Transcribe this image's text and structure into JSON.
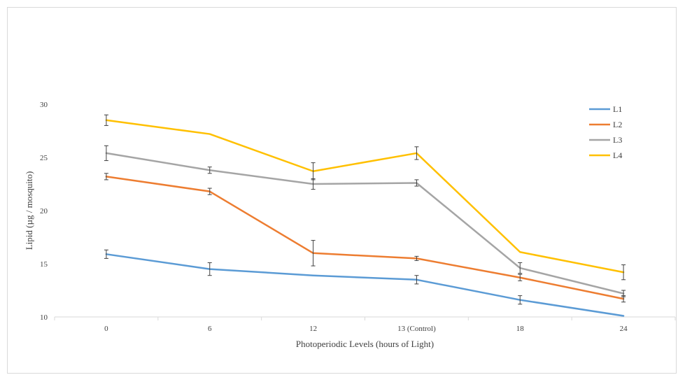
{
  "chart_data": {
    "type": "line",
    "title": "",
    "xlabel": "Photoperiodic Levels (hours of Light)",
    "ylabel": "Lipid (µg / mosquito)",
    "categories": [
      "0",
      "6",
      "12",
      "13 (Control)",
      "18",
      "24"
    ],
    "ylim": [
      10,
      30
    ],
    "yticks": [
      10,
      15,
      20,
      25,
      30
    ],
    "grid": false,
    "legend_position": "top-right",
    "series": [
      {
        "name": "L1",
        "color": "#5b9bd5",
        "values": [
          15.9,
          14.5,
          13.9,
          13.5,
          11.6,
          10.1
        ],
        "errors": [
          0.4,
          0.6,
          0,
          0.4,
          0.4,
          0
        ]
      },
      {
        "name": "L2",
        "color": "#ed7d31",
        "values": [
          23.2,
          21.8,
          16.0,
          15.5,
          13.7,
          11.7
        ],
        "errors": [
          0.3,
          0.3,
          1.2,
          0.2,
          0.3,
          0.3
        ]
      },
      {
        "name": "L3",
        "color": "#a5a5a5",
        "values": [
          25.4,
          23.8,
          22.5,
          22.6,
          14.6,
          12.2
        ],
        "errors": [
          0.7,
          0.3,
          0.5,
          0.3,
          0.5,
          0.3
        ]
      },
      {
        "name": "L4",
        "color": "#ffc000",
        "values": [
          28.5,
          27.2,
          23.7,
          25.4,
          16.1,
          14.2
        ],
        "errors": [
          0.5,
          0,
          0.8,
          0.6,
          0,
          0.7
        ]
      }
    ]
  }
}
